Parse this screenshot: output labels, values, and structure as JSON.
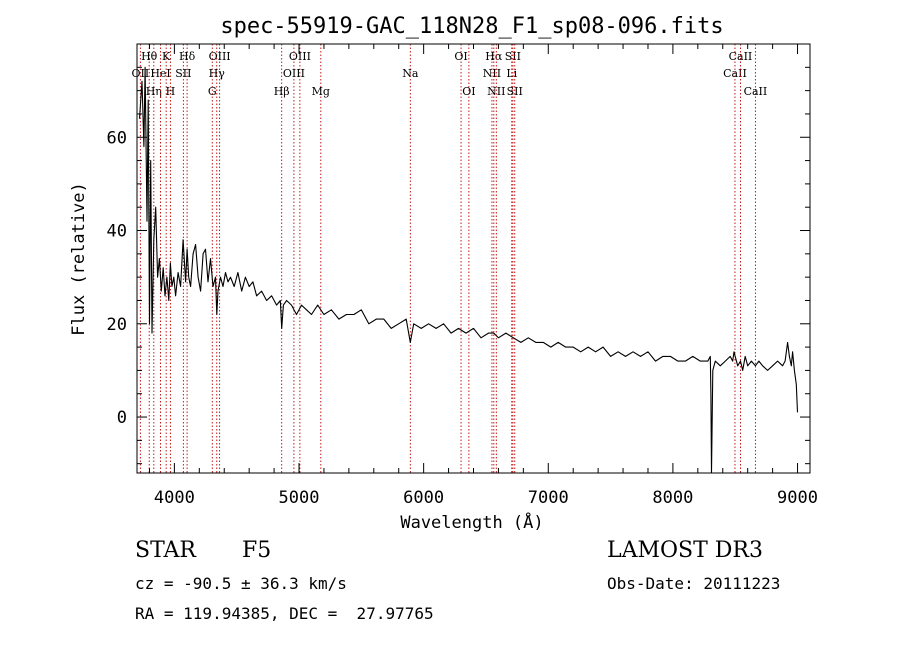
{
  "chart_data": {
    "type": "line",
    "title": "spec-55919-GAC_118N28_F1_sp08-096.fits",
    "xlabel": "Wavelength (Å)",
    "ylabel": "Flux (relative)",
    "xlim": [
      3700,
      9100
    ],
    "ylim": [
      -12,
      80
    ],
    "x_ticks": [
      4000,
      5000,
      6000,
      7000,
      8000,
      9000
    ],
    "y_ticks": [
      0,
      20,
      40,
      60
    ],
    "series": [
      {
        "name": "spectrum",
        "x": [
          3720,
          3740,
          3755,
          3765,
          3780,
          3790,
          3800,
          3810,
          3820,
          3835,
          3850,
          3865,
          3880,
          3895,
          3910,
          3925,
          3940,
          3955,
          3968,
          3980,
          3995,
          4010,
          4030,
          4050,
          4070,
          4090,
          4102,
          4115,
          4130,
          4150,
          4170,
          4190,
          4210,
          4230,
          4250,
          4270,
          4290,
          4310,
          4330,
          4340,
          4350,
          4370,
          4390,
          4410,
          4430,
          4450,
          4480,
          4510,
          4540,
          4570,
          4600,
          4630,
          4660,
          4700,
          4740,
          4780,
          4820,
          4850,
          4861,
          4875,
          4900,
          4940,
          4980,
          5020,
          5060,
          5100,
          5150,
          5200,
          5260,
          5320,
          5380,
          5440,
          5500,
          5560,
          5620,
          5680,
          5740,
          5800,
          5860,
          5893,
          5920,
          5980,
          6040,
          6100,
          6160,
          6220,
          6280,
          6340,
          6400,
          6460,
          6520,
          6563,
          6600,
          6660,
          6720,
          6780,
          6840,
          6900,
          6960,
          7020,
          7080,
          7140,
          7200,
          7260,
          7320,
          7380,
          7440,
          7500,
          7560,
          7620,
          7680,
          7740,
          7800,
          7860,
          7920,
          7980,
          8040,
          8100,
          8160,
          8220,
          8280,
          8300,
          8305,
          8310,
          8320,
          8340,
          8380,
          8420,
          8460,
          8480,
          8490,
          8500,
          8520,
          8542,
          8560,
          8580,
          8600,
          8630,
          8662,
          8690,
          8720,
          8760,
          8800,
          8840,
          8880,
          8900,
          8920,
          8935,
          8950,
          8960,
          8975,
          8990,
          9000
        ],
        "values": [
          64,
          72,
          58,
          75,
          42,
          68,
          20,
          55,
          18,
          38,
          45,
          30,
          34,
          27,
          32,
          26,
          30,
          25,
          33,
          28,
          30,
          26,
          31,
          28,
          38,
          29,
          36,
          30,
          28,
          35,
          37,
          30,
          27,
          35,
          36,
          29,
          34,
          28,
          30,
          22,
          27,
          30,
          28,
          31,
          29,
          30,
          28,
          31,
          27,
          30,
          28,
          29,
          26,
          27,
          25,
          26,
          24,
          25,
          19,
          24,
          25,
          24,
          22,
          24,
          23,
          22,
          24,
          22,
          23,
          21,
          22,
          22,
          23,
          20,
          21,
          21,
          19,
          20,
          21,
          16,
          20,
          19,
          20,
          19,
          20,
          18,
          19,
          18,
          19,
          17,
          18,
          18,
          17,
          18,
          17,
          16,
          17,
          16,
          16,
          15,
          16,
          15,
          15,
          14,
          15,
          14,
          15,
          13,
          14,
          13,
          14,
          13,
          14,
          12,
          13,
          13,
          12,
          12,
          13,
          12,
          12,
          13,
          5,
          -12,
          10,
          12,
          11,
          12,
          13,
          12,
          14,
          13,
          11,
          12,
          10,
          13,
          11,
          12,
          11,
          12,
          11,
          10,
          11,
          12,
          11,
          12,
          16,
          13,
          11,
          14,
          10,
          7,
          1
        ]
      }
    ],
    "spectral_lines": [
      {
        "name": "OII",
        "wavelength": 3727,
        "row": 2
      },
      {
        "name": "Hθ",
        "wavelength": 3798,
        "row": 1
      },
      {
        "name": "Hη",
        "wavelength": 3835,
        "row": 3
      },
      {
        "name": "HeI",
        "wavelength": 3889,
        "row": 2
      },
      {
        "name": "K",
        "wavelength": 3934,
        "row": 1
      },
      {
        "name": "H",
        "wavelength": 3968,
        "row": 3
      },
      {
        "name": "SII",
        "wavelength": 4072,
        "row": 2
      },
      {
        "name": "Hδ",
        "wavelength": 4102,
        "row": 1
      },
      {
        "name": "G",
        "wavelength": 4304,
        "row": 3
      },
      {
        "name": "Hγ",
        "wavelength": 4340,
        "row": 2
      },
      {
        "name": "OIII",
        "wavelength": 4363,
        "row": 1
      },
      {
        "name": "Hβ",
        "wavelength": 4861,
        "row": 3
      },
      {
        "name": "OIII",
        "wavelength": 4959,
        "row": 2
      },
      {
        "name": "OIII",
        "wavelength": 5007,
        "row": 1
      },
      {
        "name": "Mg",
        "wavelength": 5175,
        "row": 3
      },
      {
        "name": "Na",
        "wavelength": 5893,
        "row": 2
      },
      {
        "name": "OI",
        "wavelength": 6300,
        "row": 1
      },
      {
        "name": "OI",
        "wavelength": 6363,
        "row": 3
      },
      {
        "name": "NII",
        "wavelength": 6548,
        "row": 2
      },
      {
        "name": "Hα",
        "wavelength": 6563,
        "row": 1
      },
      {
        "name": "NII",
        "wavelength": 6583,
        "row": 3
      },
      {
        "name": "Li",
        "wavelength": 6707,
        "row": 2
      },
      {
        "name": "SII",
        "wavelength": 6716,
        "row": 1
      },
      {
        "name": "SII",
        "wavelength": 6731,
        "row": 3
      },
      {
        "name": "CaII",
        "wavelength": 8498,
        "row": 2
      },
      {
        "name": "CaII",
        "wavelength": 8542,
        "row": 1
      },
      {
        "name": "CaII",
        "wavelength": 8662,
        "row": 3
      }
    ]
  },
  "info": {
    "class": "STAR",
    "subclass": "F5",
    "survey": "LAMOST DR3",
    "cz": "cz = -90.5 ± 36.3 km/s",
    "obs_date": "Obs-Date: 20111223",
    "coords": "RA = 119.94385, DEC =  27.97765"
  }
}
